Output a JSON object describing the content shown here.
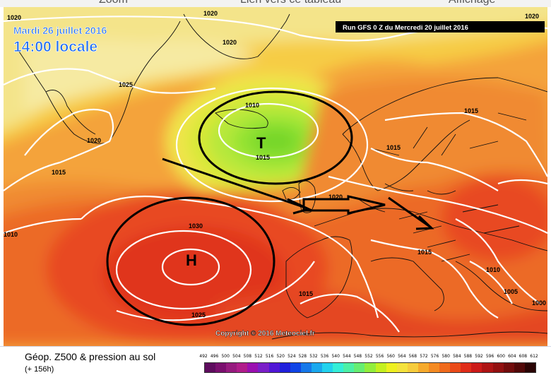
{
  "top_strip": [
    "Zoom",
    "Lien vers ce tableau",
    "Affichage"
  ],
  "date_line": "Mardi 26 juillet 2016",
  "time_line": "14:00 locale",
  "run_line": "Run GFS 0 Z du Mercredi 20 juillet 2016",
  "copyright": "Copyright © 2016 Meteociel.fr",
  "legend": {
    "title": "Géop. Z500 & pression au sol",
    "subtitle": "(+ 156h)",
    "scale_values": [
      "492",
      "496",
      "500",
      "504",
      "508",
      "512",
      "516",
      "520",
      "524",
      "528",
      "532",
      "536",
      "540",
      "544",
      "548",
      "552",
      "556",
      "560",
      "564",
      "568",
      "572",
      "576",
      "580",
      "584",
      "588",
      "592",
      "596",
      "600",
      "604",
      "608",
      "612"
    ],
    "scale_colors": [
      "#5e0c5e",
      "#7a0f6e",
      "#961a7e",
      "#b01c8a",
      "#9a0fb0",
      "#7a1ec8",
      "#5016d6",
      "#2020dc",
      "#1044e6",
      "#1678ea",
      "#1aa8ee",
      "#22d2ee",
      "#34eed8",
      "#4cf0a6",
      "#66ee72",
      "#92ee3c",
      "#c4f020",
      "#eef020",
      "#f4e23c",
      "#f6cc3c",
      "#f6aa2c",
      "#f48a22",
      "#f06a1c",
      "#ea4a18",
      "#e02c18",
      "#cc1a18",
      "#ae1414",
      "#921010",
      "#720c0c",
      "#520808",
      "#2a0404"
    ]
  },
  "map": {
    "markers": {
      "low": "T",
      "high": "H"
    },
    "isobar_labels": [
      {
        "text": "1020",
        "id": "isobar-1020-topleft"
      },
      {
        "text": "1020",
        "id": "isobar-1020-top"
      },
      {
        "text": "1020",
        "id": "isobar-1020-greenland"
      },
      {
        "text": "1025",
        "id": "isobar-1025-north"
      },
      {
        "text": "1020",
        "id": "isobar-1020-west"
      },
      {
        "text": "1015",
        "id": "isobar-1015-west"
      },
      {
        "text": "1010",
        "id": "isobar-1010-farwest"
      },
      {
        "text": "1010",
        "id": "isobar-1010-low"
      },
      {
        "text": "1015",
        "id": "isobar-1015-low"
      },
      {
        "text": "1015",
        "id": "isobar-1015-scandinavia"
      },
      {
        "text": "1015",
        "id": "isobar-1015-baltic"
      },
      {
        "text": "1020",
        "id": "isobar-1020-northsea"
      },
      {
        "text": "1030",
        "id": "isobar-1030-high"
      },
      {
        "text": "1025",
        "id": "isobar-1025-south"
      },
      {
        "text": "1015",
        "id": "isobar-1015-iberia"
      },
      {
        "text": "1015",
        "id": "isobar-1015-alps"
      },
      {
        "text": "1010",
        "id": "isobar-1010-balkans"
      },
      {
        "text": "1005",
        "id": "isobar-1005-greece"
      },
      {
        "text": "1000",
        "id": "isobar-1000-turkey"
      },
      {
        "text": "1020",
        "id": "isobar-1020-topright"
      }
    ]
  }
}
